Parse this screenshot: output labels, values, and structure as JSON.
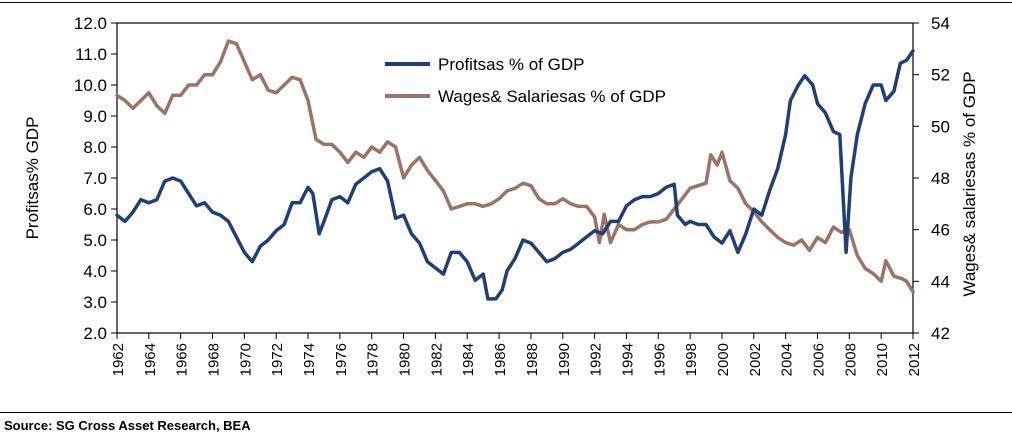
{
  "chart_data": {
    "type": "line",
    "source": "Source: SG Cross Asset Research, BEA",
    "left_axis": {
      "label": "Profitsas% GDP",
      "min": 2.0,
      "max": 12.0,
      "ticks": [
        "2.0",
        "3.0",
        "4.0",
        "5.0",
        "6.0",
        "7.0",
        "8.0",
        "9.0",
        "10.0",
        "11.0",
        "12.0"
      ]
    },
    "right_axis": {
      "label": "Wages& salariesas % of GDP",
      "min": 42,
      "max": 54,
      "ticks": [
        "42",
        "44",
        "46",
        "48",
        "50",
        "52",
        "54"
      ]
    },
    "x_axis": {
      "min": 1962,
      "max": 2012,
      "ticks": [
        "1962",
        "1964",
        "1966",
        "1968",
        "1970",
        "1972",
        "1974",
        "1976",
        "1978",
        "1980",
        "1982",
        "1984",
        "1986",
        "1988",
        "1990",
        "1992",
        "1994",
        "1996",
        "1998",
        "2000",
        "2002",
        "2004",
        "2006",
        "2008",
        "2010",
        "2012"
      ]
    },
    "legend": [
      "Profitsas % of GDP",
      "Wages& Salariesas % of GDP"
    ],
    "colors": {
      "profits": "#1f3f77",
      "wages": "#9b7466"
    },
    "series": [
      {
        "name": "Profitsas % of GDP",
        "axis": "left",
        "points": [
          [
            1962,
            5.8
          ],
          [
            1962.5,
            5.6
          ],
          [
            1963,
            5.9
          ],
          [
            1963.5,
            6.3
          ],
          [
            1964,
            6.2
          ],
          [
            1964.5,
            6.3
          ],
          [
            1965,
            6.9
          ],
          [
            1965.5,
            7.0
          ],
          [
            1966,
            6.9
          ],
          [
            1966.5,
            6.5
          ],
          [
            1967,
            6.1
          ],
          [
            1967.5,
            6.2
          ],
          [
            1968,
            5.9
          ],
          [
            1968.5,
            5.8
          ],
          [
            1969,
            5.6
          ],
          [
            1969.5,
            5.1
          ],
          [
            1970,
            4.6
          ],
          [
            1970.5,
            4.3
          ],
          [
            1971,
            4.8
          ],
          [
            1971.5,
            5.0
          ],
          [
            1972,
            5.3
          ],
          [
            1972.5,
            5.5
          ],
          [
            1973,
            6.2
          ],
          [
            1973.5,
            6.2
          ],
          [
            1974,
            6.7
          ],
          [
            1974.3,
            6.5
          ],
          [
            1974.7,
            5.2
          ],
          [
            1975,
            5.6
          ],
          [
            1975.5,
            6.3
          ],
          [
            1976,
            6.4
          ],
          [
            1976.5,
            6.2
          ],
          [
            1977,
            6.8
          ],
          [
            1977.5,
            7.0
          ],
          [
            1978,
            7.2
          ],
          [
            1978.5,
            7.3
          ],
          [
            1979,
            6.9
          ],
          [
            1979.5,
            5.7
          ],
          [
            1980,
            5.8
          ],
          [
            1980.5,
            5.2
          ],
          [
            1981,
            4.9
          ],
          [
            1981.5,
            4.3
          ],
          [
            1982,
            4.1
          ],
          [
            1982.5,
            3.9
          ],
          [
            1983,
            4.6
          ],
          [
            1983.5,
            4.6
          ],
          [
            1984,
            4.3
          ],
          [
            1984.5,
            3.7
          ],
          [
            1985,
            3.9
          ],
          [
            1985.3,
            3.1
          ],
          [
            1985.8,
            3.1
          ],
          [
            1986.2,
            3.4
          ],
          [
            1986.5,
            4.0
          ],
          [
            1987,
            4.4
          ],
          [
            1987.5,
            5.0
          ],
          [
            1988,
            4.9
          ],
          [
            1988.5,
            4.6
          ],
          [
            1989,
            4.3
          ],
          [
            1989.5,
            4.4
          ],
          [
            1990,
            4.6
          ],
          [
            1990.5,
            4.7
          ],
          [
            1991,
            4.9
          ],
          [
            1991.5,
            5.1
          ],
          [
            1992,
            5.3
          ],
          [
            1992.5,
            5.2
          ],
          [
            1993,
            5.6
          ],
          [
            1993.5,
            5.6
          ],
          [
            1994,
            6.1
          ],
          [
            1994.5,
            6.3
          ],
          [
            1995,
            6.4
          ],
          [
            1995.5,
            6.4
          ],
          [
            1996,
            6.5
          ],
          [
            1996.5,
            6.7
          ],
          [
            1997,
            6.8
          ],
          [
            1997.2,
            5.8
          ],
          [
            1997.7,
            5.5
          ],
          [
            1998,
            5.6
          ],
          [
            1998.5,
            5.5
          ],
          [
            1999,
            5.5
          ],
          [
            1999.5,
            5.1
          ],
          [
            2000,
            4.9
          ],
          [
            2000.5,
            5.3
          ],
          [
            2001,
            4.6
          ],
          [
            2001.5,
            5.2
          ],
          [
            2002,
            6.0
          ],
          [
            2002.5,
            5.8
          ],
          [
            2003,
            6.6
          ],
          [
            2003.5,
            7.3
          ],
          [
            2004,
            8.4
          ],
          [
            2004.3,
            9.5
          ],
          [
            2004.8,
            10.0
          ],
          [
            2005.2,
            10.3
          ],
          [
            2005.7,
            10.0
          ],
          [
            2006,
            9.4
          ],
          [
            2006.5,
            9.1
          ],
          [
            2007,
            8.5
          ],
          [
            2007.4,
            8.4
          ],
          [
            2007.8,
            4.6
          ],
          [
            2008.1,
            7.0
          ],
          [
            2008.5,
            8.4
          ],
          [
            2009,
            9.4
          ],
          [
            2009.5,
            10.0
          ],
          [
            2010,
            10.0
          ],
          [
            2010.3,
            9.5
          ],
          [
            2010.8,
            9.8
          ],
          [
            2011.2,
            10.7
          ],
          [
            2011.6,
            10.8
          ],
          [
            2012,
            11.1
          ]
        ]
      },
      {
        "name": "Wages& Salariesas % of GDP",
        "axis": "right",
        "points": [
          [
            1962,
            51.2
          ],
          [
            1962.5,
            51.0
          ],
          [
            1963,
            50.7
          ],
          [
            1963.5,
            51.0
          ],
          [
            1964,
            51.3
          ],
          [
            1964.5,
            50.8
          ],
          [
            1965,
            50.5
          ],
          [
            1965.5,
            51.2
          ],
          [
            1966,
            51.2
          ],
          [
            1966.5,
            51.6
          ],
          [
            1967,
            51.6
          ],
          [
            1967.5,
            52.0
          ],
          [
            1968,
            52.0
          ],
          [
            1968.5,
            52.5
          ],
          [
            1969,
            53.3
          ],
          [
            1969.5,
            53.2
          ],
          [
            1970,
            52.5
          ],
          [
            1970.5,
            51.8
          ],
          [
            1971,
            52.0
          ],
          [
            1971.5,
            51.4
          ],
          [
            1972,
            51.3
          ],
          [
            1972.5,
            51.6
          ],
          [
            1973,
            51.9
          ],
          [
            1973.5,
            51.8
          ],
          [
            1974,
            51.0
          ],
          [
            1974.5,
            49.5
          ],
          [
            1975,
            49.3
          ],
          [
            1975.5,
            49.3
          ],
          [
            1976,
            49.0
          ],
          [
            1976.5,
            48.6
          ],
          [
            1977,
            49.0
          ],
          [
            1977.5,
            48.8
          ],
          [
            1978,
            49.2
          ],
          [
            1978.5,
            49.0
          ],
          [
            1979,
            49.4
          ],
          [
            1979.5,
            49.2
          ],
          [
            1980,
            48.0
          ],
          [
            1980.5,
            48.5
          ],
          [
            1981,
            48.8
          ],
          [
            1981.5,
            48.3
          ],
          [
            1982,
            47.9
          ],
          [
            1982.5,
            47.5
          ],
          [
            1983,
            46.8
          ],
          [
            1983.5,
            46.9
          ],
          [
            1984,
            47.0
          ],
          [
            1984.5,
            47.0
          ],
          [
            1985,
            46.9
          ],
          [
            1985.5,
            47.0
          ],
          [
            1986,
            47.2
          ],
          [
            1986.5,
            47.5
          ],
          [
            1987,
            47.6
          ],
          [
            1987.5,
            47.8
          ],
          [
            1988,
            47.7
          ],
          [
            1988.5,
            47.2
          ],
          [
            1989,
            47.0
          ],
          [
            1989.5,
            47.0
          ],
          [
            1990,
            47.2
          ],
          [
            1990.5,
            47.0
          ],
          [
            1991,
            46.9
          ],
          [
            1991.5,
            46.9
          ],
          [
            1992,
            46.5
          ],
          [
            1992.3,
            45.5
          ],
          [
            1992.6,
            46.6
          ],
          [
            1993,
            45.5
          ],
          [
            1993.5,
            46.2
          ],
          [
            1994,
            46.0
          ],
          [
            1994.5,
            46.0
          ],
          [
            1995,
            46.2
          ],
          [
            1995.5,
            46.3
          ],
          [
            1996,
            46.3
          ],
          [
            1996.5,
            46.4
          ],
          [
            1997,
            46.8
          ],
          [
            1997.5,
            47.2
          ],
          [
            1998,
            47.6
          ],
          [
            1998.5,
            47.7
          ],
          [
            1999,
            47.8
          ],
          [
            1999.3,
            48.9
          ],
          [
            1999.7,
            48.5
          ],
          [
            2000,
            49.0
          ],
          [
            2000.5,
            47.9
          ],
          [
            2001,
            47.6
          ],
          [
            2001.5,
            47.0
          ],
          [
            2002,
            46.7
          ],
          [
            2002.5,
            46.3
          ],
          [
            2003,
            46.0
          ],
          [
            2003.5,
            45.7
          ],
          [
            2004,
            45.5
          ],
          [
            2004.5,
            45.4
          ],
          [
            2005,
            45.6
          ],
          [
            2005.5,
            45.2
          ],
          [
            2006,
            45.7
          ],
          [
            2006.5,
            45.5
          ],
          [
            2007,
            46.1
          ],
          [
            2007.5,
            45.9
          ],
          [
            2008,
            46.0
          ],
          [
            2008.5,
            45.0
          ],
          [
            2009,
            44.5
          ],
          [
            2009.5,
            44.3
          ],
          [
            2010,
            44.0
          ],
          [
            2010.3,
            44.8
          ],
          [
            2010.8,
            44.2
          ],
          [
            2011.3,
            44.1
          ],
          [
            2011.6,
            44.0
          ],
          [
            2012,
            43.6
          ]
        ]
      }
    ]
  }
}
